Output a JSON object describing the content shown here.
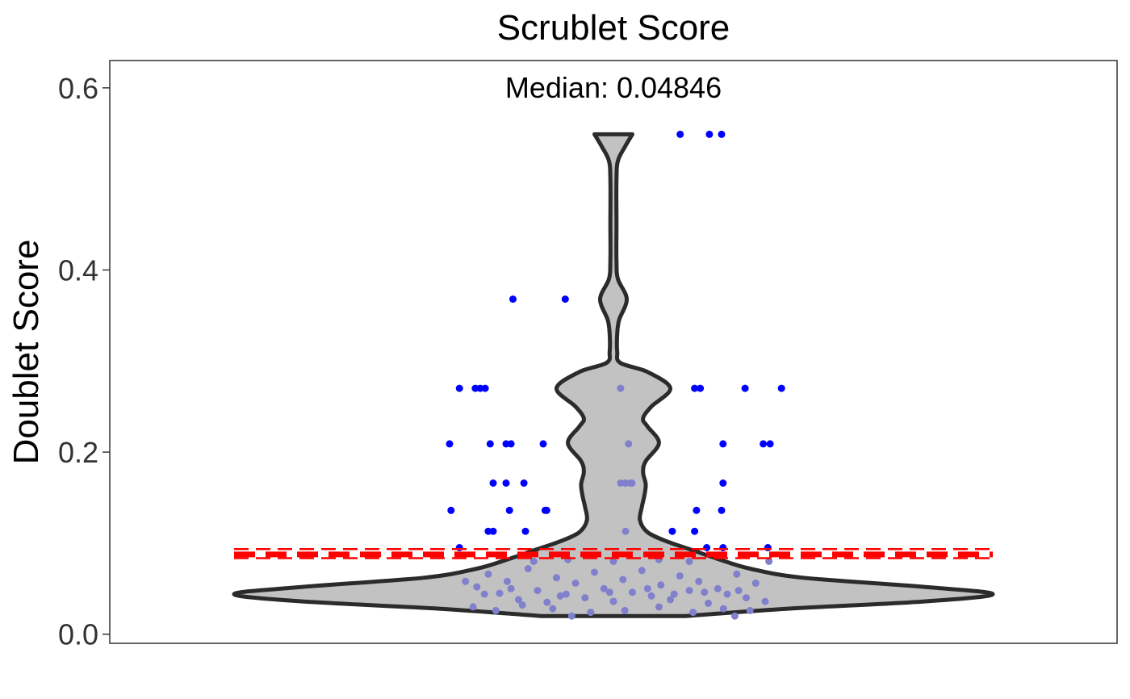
{
  "chart_data": {
    "type": "violin",
    "title": "Scrublet Score",
    "subtitle": "Median: 0.04846",
    "xlabel": "",
    "ylabel": "Doublet Score",
    "ylim": [
      -0.01,
      0.63
    ],
    "yticks": [
      0.0,
      0.2,
      0.4,
      0.6
    ],
    "ytick_labels": [
      "0.0",
      "0.2",
      "0.4",
      "0.6"
    ],
    "grid": false,
    "legend": "none",
    "median": 0.04846,
    "threshold": 0.0876,
    "threshold_band": [
      0.0835,
      0.0935
    ],
    "colors": {
      "violin_fill": "#c2c2c2",
      "violin_outline": "#2b2b2b",
      "doublet_points": "#0000ff",
      "singlet_points": "#8080cc",
      "threshold_line": "#ff0000"
    },
    "violin_profile": [
      {
        "y": 0.02,
        "w": 0.19
      },
      {
        "y": 0.028,
        "w": 0.46
      },
      {
        "y": 0.036,
        "w": 0.82
      },
      {
        "y": 0.044,
        "w": 1.0
      },
      {
        "y": 0.052,
        "w": 0.82
      },
      {
        "y": 0.062,
        "w": 0.5
      },
      {
        "y": 0.072,
        "w": 0.36
      },
      {
        "y": 0.082,
        "w": 0.28
      },
      {
        "y": 0.092,
        "w": 0.21
      },
      {
        "y": 0.102,
        "w": 0.14
      },
      {
        "y": 0.112,
        "w": 0.09
      },
      {
        "y": 0.125,
        "w": 0.07
      },
      {
        "y": 0.14,
        "w": 0.075
      },
      {
        "y": 0.153,
        "w": 0.082
      },
      {
        "y": 0.165,
        "w": 0.085
      },
      {
        "y": 0.178,
        "w": 0.078
      },
      {
        "y": 0.19,
        "w": 0.085
      },
      {
        "y": 0.21,
        "w": 0.12
      },
      {
        "y": 0.228,
        "w": 0.09
      },
      {
        "y": 0.237,
        "w": 0.078
      },
      {
        "y": 0.25,
        "w": 0.1
      },
      {
        "y": 0.27,
        "w": 0.15
      },
      {
        "y": 0.288,
        "w": 0.09
      },
      {
        "y": 0.298,
        "w": 0.018
      },
      {
        "y": 0.31,
        "w": 0.01
      },
      {
        "y": 0.33,
        "w": 0.01
      },
      {
        "y": 0.345,
        "w": 0.015
      },
      {
        "y": 0.368,
        "w": 0.035
      },
      {
        "y": 0.39,
        "w": 0.012
      },
      {
        "y": 0.41,
        "w": 0.008
      },
      {
        "y": 0.45,
        "w": 0.008
      },
      {
        "y": 0.5,
        "w": 0.008
      },
      {
        "y": 0.52,
        "w": 0.012
      },
      {
        "y": 0.535,
        "w": 0.03
      },
      {
        "y": 0.549,
        "w": 0.05
      }
    ],
    "series": [
      {
        "color": "#0000ff",
        "points": [
          {
            "x": 0.176,
            "y": 0.549
          },
          {
            "x": 0.253,
            "y": 0.549
          },
          {
            "x": 0.285,
            "y": 0.549
          },
          {
            "x": -0.265,
            "y": 0.368
          },
          {
            "x": -0.127,
            "y": 0.368
          },
          {
            "x": -0.406,
            "y": 0.27
          },
          {
            "x": -0.364,
            "y": 0.27
          },
          {
            "x": -0.351,
            "y": 0.27
          },
          {
            "x": -0.338,
            "y": 0.27
          },
          {
            "x": 0.214,
            "y": 0.27
          },
          {
            "x": 0.229,
            "y": 0.27
          },
          {
            "x": 0.347,
            "y": 0.27
          },
          {
            "x": 0.443,
            "y": 0.27
          },
          {
            "x": -0.432,
            "y": 0.209
          },
          {
            "x": -0.325,
            "y": 0.209
          },
          {
            "x": -0.283,
            "y": 0.209
          },
          {
            "x": -0.27,
            "y": 0.209
          },
          {
            "x": -0.185,
            "y": 0.209
          },
          {
            "x": 0.289,
            "y": 0.209
          },
          {
            "x": 0.395,
            "y": 0.209
          },
          {
            "x": 0.413,
            "y": 0.209
          },
          {
            "x": -0.317,
            "y": 0.166
          },
          {
            "x": -0.283,
            "y": 0.166
          },
          {
            "x": -0.236,
            "y": 0.166
          },
          {
            "x": 0.289,
            "y": 0.166
          },
          {
            "x": -0.428,
            "y": 0.136
          },
          {
            "x": -0.274,
            "y": 0.136
          },
          {
            "x": -0.18,
            "y": 0.136
          },
          {
            "x": -0.176,
            "y": 0.136
          },
          {
            "x": 0.219,
            "y": 0.136
          },
          {
            "x": 0.285,
            "y": 0.136
          },
          {
            "x": -0.33,
            "y": 0.113
          },
          {
            "x": -0.317,
            "y": 0.113
          },
          {
            "x": -0.232,
            "y": 0.113
          },
          {
            "x": 0.155,
            "y": 0.113
          },
          {
            "x": 0.214,
            "y": 0.113
          },
          {
            "x": -0.406,
            "y": 0.095
          },
          {
            "x": 0.246,
            "y": 0.095
          },
          {
            "x": 0.289,
            "y": 0.095
          },
          {
            "x": 0.407,
            "y": 0.095
          }
        ]
      },
      {
        "color": "#8080cc",
        "points": [
          {
            "x": 0.019,
            "y": 0.27
          },
          {
            "x": 0.04,
            "y": 0.209
          },
          {
            "x": 0.019,
            "y": 0.166
          },
          {
            "x": 0.032,
            "y": 0.166
          },
          {
            "x": 0.045,
            "y": 0.166
          },
          {
            "x": 0.049,
            "y": 0.166
          },
          {
            "x": 0.032,
            "y": 0.113
          },
          {
            "x": -0.39,
            "y": 0.058
          },
          {
            "x": -0.36,
            "y": 0.052
          },
          {
            "x": -0.33,
            "y": 0.066
          },
          {
            "x": -0.3,
            "y": 0.045
          },
          {
            "x": -0.28,
            "y": 0.058
          },
          {
            "x": -0.25,
            "y": 0.038
          },
          {
            "x": -0.225,
            "y": 0.072
          },
          {
            "x": -0.2,
            "y": 0.048
          },
          {
            "x": -0.175,
            "y": 0.035
          },
          {
            "x": -0.15,
            "y": 0.062
          },
          {
            "x": -0.125,
            "y": 0.044
          },
          {
            "x": -0.1,
            "y": 0.056
          },
          {
            "x": -0.075,
            "y": 0.04
          },
          {
            "x": -0.05,
            "y": 0.068
          },
          {
            "x": -0.025,
            "y": 0.05
          },
          {
            "x": 0.0,
            "y": 0.036
          },
          {
            "x": 0.025,
            "y": 0.06
          },
          {
            "x": 0.05,
            "y": 0.046
          },
          {
            "x": 0.075,
            "y": 0.07
          },
          {
            "x": 0.1,
            "y": 0.042
          },
          {
            "x": 0.125,
            "y": 0.054
          },
          {
            "x": 0.15,
            "y": 0.038
          },
          {
            "x": 0.175,
            "y": 0.064
          },
          {
            "x": 0.2,
            "y": 0.048
          },
          {
            "x": 0.225,
            "y": 0.058
          },
          {
            "x": 0.25,
            "y": 0.034
          },
          {
            "x": 0.275,
            "y": 0.05
          },
          {
            "x": 0.3,
            "y": 0.044
          },
          {
            "x": 0.325,
            "y": 0.066
          },
          {
            "x": 0.35,
            "y": 0.04
          },
          {
            "x": 0.375,
            "y": 0.056
          },
          {
            "x": 0.4,
            "y": 0.036
          },
          {
            "x": -0.37,
            "y": 0.03
          },
          {
            "x": -0.31,
            "y": 0.026
          },
          {
            "x": -0.24,
            "y": 0.032
          },
          {
            "x": -0.16,
            "y": 0.028
          },
          {
            "x": -0.06,
            "y": 0.024
          },
          {
            "x": 0.03,
            "y": 0.026
          },
          {
            "x": 0.12,
            "y": 0.03
          },
          {
            "x": 0.21,
            "y": 0.024
          },
          {
            "x": 0.29,
            "y": 0.028
          },
          {
            "x": 0.36,
            "y": 0.026
          },
          {
            "x": -0.11,
            "y": 0.02
          },
          {
            "x": 0.32,
            "y": 0.02
          },
          {
            "x": -0.21,
            "y": 0.08
          },
          {
            "x": -0.12,
            "y": 0.082
          },
          {
            "x": 0.0,
            "y": 0.08
          },
          {
            "x": 0.12,
            "y": 0.082
          },
          {
            "x": 0.2,
            "y": 0.08
          },
          {
            "x": 0.41,
            "y": 0.08
          },
          {
            "x": -0.34,
            "y": 0.044
          },
          {
            "x": -0.27,
            "y": 0.05
          },
          {
            "x": -0.14,
            "y": 0.042
          },
          {
            "x": -0.01,
            "y": 0.046
          },
          {
            "x": 0.09,
            "y": 0.05
          },
          {
            "x": 0.16,
            "y": 0.044
          },
          {
            "x": 0.24,
            "y": 0.046
          },
          {
            "x": 0.33,
            "y": 0.048
          }
        ]
      }
    ]
  }
}
